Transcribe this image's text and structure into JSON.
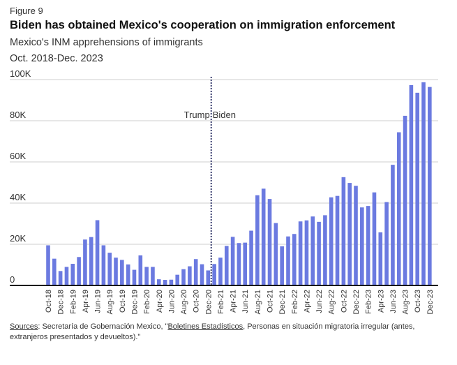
{
  "figure_label": "Figure 9",
  "title": "Biden has obtained Mexico's cooperation on immigration enforcement",
  "subtitle": "Mexico's INM apprehensions of immigrants",
  "date_range": "Oct. 2018-Dec. 2023",
  "source": {
    "prefix": "Sources",
    "text_a": ": Secretaría de Gobernación Mexico, \"",
    "link": "Boletines Estadísticos",
    "text_b": ", Personas en situación migratoria irregular (antes, extranjeros presentados y devueltos).\""
  },
  "colors": {
    "bar": "#6b7ae0",
    "grid": "#cfcfcf",
    "axis": "#111111",
    "divider": "#3a3f70"
  },
  "chart_data": {
    "type": "bar",
    "ylim": [
      0,
      100000
    ],
    "yticks": [
      0,
      20000,
      40000,
      60000,
      80000,
      100000
    ],
    "ytick_labels": [
      "0",
      "20K",
      "40K",
      "60K",
      "80K",
      "100K"
    ],
    "grid": true,
    "x": [
      "Oct-18",
      "Nov-18",
      "Dec-18",
      "Jan-19",
      "Feb-19",
      "Mar-19",
      "Apr-19",
      "May-19",
      "Jun-19",
      "Jul-19",
      "Aug-19",
      "Sep-19",
      "Oct-19",
      "Nov-19",
      "Dec-19",
      "Jan-20",
      "Feb-20",
      "Mar-20",
      "Apr-20",
      "May-20",
      "Jun-20",
      "Jul-20",
      "Aug-20",
      "Sep-20",
      "Oct-20",
      "Nov-20",
      "Dec-20",
      "Jan-21",
      "Feb-21",
      "Mar-21",
      "Apr-21",
      "May-21",
      "Jun-21",
      "Jul-21",
      "Aug-21",
      "Sep-21",
      "Oct-21",
      "Nov-21",
      "Dec-21",
      "Jan-22",
      "Feb-22",
      "Mar-22",
      "Apr-22",
      "May-22",
      "Jun-22",
      "Jul-22",
      "Aug-22",
      "Sep-22",
      "Oct-22",
      "Nov-22",
      "Dec-22",
      "Jan-23",
      "Feb-23",
      "Mar-23",
      "Apr-23",
      "May-23",
      "Jun-23",
      "Jul-23",
      "Aug-23",
      "Sep-23",
      "Oct-23",
      "Nov-23",
      "Dec-23"
    ],
    "xtick_labels": [
      "Oct-18",
      "Dec-18",
      "Feb-19",
      "Apr-19",
      "Jun-19",
      "Aug-19",
      "Oct-19",
      "Dec-19",
      "Feb-20",
      "Apr-20",
      "Jun-20",
      "Aug-20",
      "Oct-20",
      "Dec-20",
      "Feb-21",
      "Apr-21",
      "Jun-21",
      "Aug-21",
      "Oct-21",
      "Dec-21",
      "Feb-22",
      "Apr-22",
      "Jun-22",
      "Aug-22",
      "Oct-22",
      "Dec-22",
      "Feb-23",
      "Apr-23",
      "Jun-23",
      "Aug-23",
      "Oct-23",
      "Dec-23"
    ],
    "values": [
      19500,
      13000,
      7000,
      9000,
      10500,
      13800,
      22300,
      23500,
      31700,
      19500,
      15900,
      13500,
      12400,
      10200,
      7600,
      14600,
      9000,
      9000,
      3000,
      2700,
      2800,
      5200,
      7900,
      9300,
      12800,
      10300,
      7300,
      10400,
      13500,
      19200,
      23600,
      20600,
      20800,
      26600,
      43800,
      47000,
      42000,
      30300,
      19000,
      23800,
      25000,
      31100,
      31600,
      33500,
      30900,
      34100,
      42800,
      43500,
      52600,
      49800,
      48400,
      37900,
      38600,
      45200,
      25800,
      40500,
      58600,
      74400,
      82400,
      97300,
      93600,
      98700,
      96400
    ],
    "annotations": [
      {
        "label_left": "Trump",
        "label_right": "Biden",
        "between": [
          "Dec-20",
          "Jan-21"
        ]
      }
    ]
  }
}
